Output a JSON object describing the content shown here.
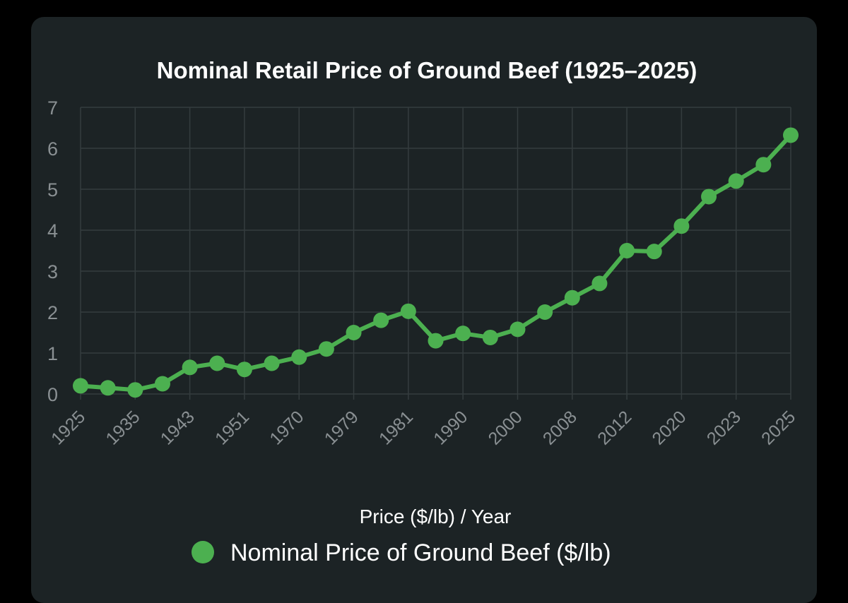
{
  "chart_data": {
    "type": "line",
    "title": "Nominal Retail Price of Ground Beef (1925–2025)",
    "xlabel": "Price ($/lb) / Year",
    "ylabel": "",
    "ylim": [
      0,
      7
    ],
    "yticks": [
      "0",
      "1",
      "2",
      "3",
      "4",
      "5",
      "6",
      "7"
    ],
    "grid": true,
    "legend_position": "bottom",
    "x_tick_labels": [
      "1925",
      "1935",
      "1943",
      "1951",
      "1970",
      "1979",
      "1981",
      "1990",
      "2000",
      "2008",
      "2012",
      "2020",
      "2023",
      "2025"
    ],
    "series": [
      {
        "name": "Nominal Price of Ground Beef ($/lb)",
        "color": "#4cb050",
        "values": [
          0.2,
          0.15,
          0.1,
          0.25,
          0.65,
          0.75,
          0.6,
          0.75,
          0.9,
          1.1,
          1.5,
          1.8,
          2.02,
          1.3,
          1.48,
          1.38,
          1.58,
          2.0,
          2.35,
          2.7,
          3.5,
          3.48,
          4.1,
          4.82,
          5.2,
          5.6,
          6.32
        ]
      }
    ]
  }
}
